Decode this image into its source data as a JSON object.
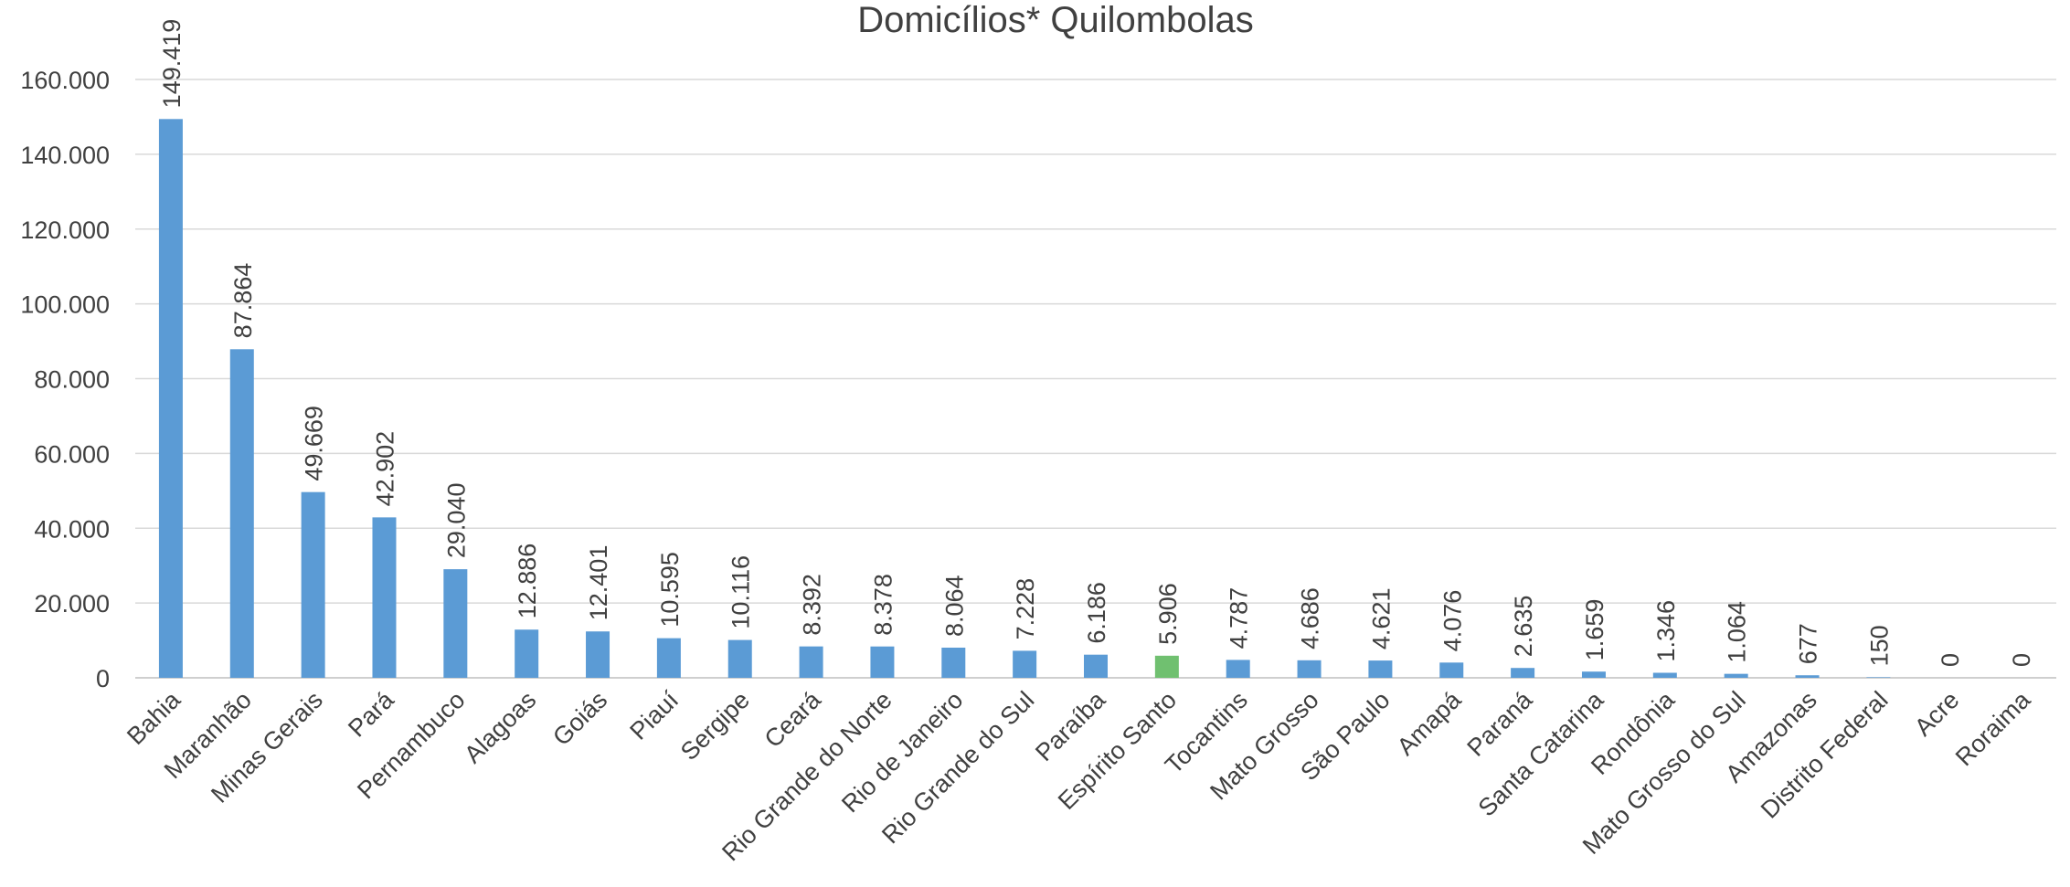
{
  "chart_data": {
    "type": "bar",
    "title": "Domicílios* Quilombolas",
    "xlabel": "",
    "ylabel": "",
    "ylim": [
      0,
      160000
    ],
    "yticks": [
      0,
      20000,
      40000,
      60000,
      80000,
      100000,
      120000,
      140000,
      160000
    ],
    "ytick_labels": [
      "0",
      "20.000",
      "40.000",
      "60.000",
      "80.000",
      "100.000",
      "120.000",
      "140.000",
      "160.000"
    ],
    "grid": true,
    "legend": "none",
    "bar_color": "#5b9bd5",
    "highlight_color": "#70c070",
    "highlight_category": "Espírito Santo",
    "categories": [
      "Bahia",
      "Maranhão",
      "Minas Gerais",
      "Pará",
      "Pernambuco",
      "Alagoas",
      "Goiás",
      "Piauí",
      "Sergipe",
      "Ceará",
      "Rio Grande do Norte",
      "Rio de Janeiro",
      "Rio Grande do Sul",
      "Paraíba",
      "Espírito Santo",
      "Tocantins",
      "Mato Grosso",
      "São Paulo",
      "Amapá",
      "Paraná",
      "Santa Catarina",
      "Rondônia",
      "Mato Grosso do Sul",
      "Amazonas",
      "Distrito Federal",
      "Acre",
      "Roraima"
    ],
    "values": [
      149419,
      87864,
      49669,
      42902,
      29040,
      12886,
      12401,
      10595,
      10116,
      8392,
      8378,
      8064,
      7228,
      6186,
      5906,
      4787,
      4686,
      4621,
      4076,
      2635,
      1659,
      1346,
      1064,
      677,
      150,
      0,
      0
    ],
    "data_labels": [
      "149.419",
      "87.864",
      "49.669",
      "42.902",
      "29.040",
      "12.886",
      "12.401",
      "10.595",
      "10.116",
      "8.392",
      "8.378",
      "8.064",
      "7.228",
      "6.186",
      "5.906",
      "4.787",
      "4.686",
      "4.621",
      "4.076",
      "2.635",
      "1.659",
      "1.346",
      "1.064",
      "677",
      "150",
      "0",
      "0"
    ]
  }
}
